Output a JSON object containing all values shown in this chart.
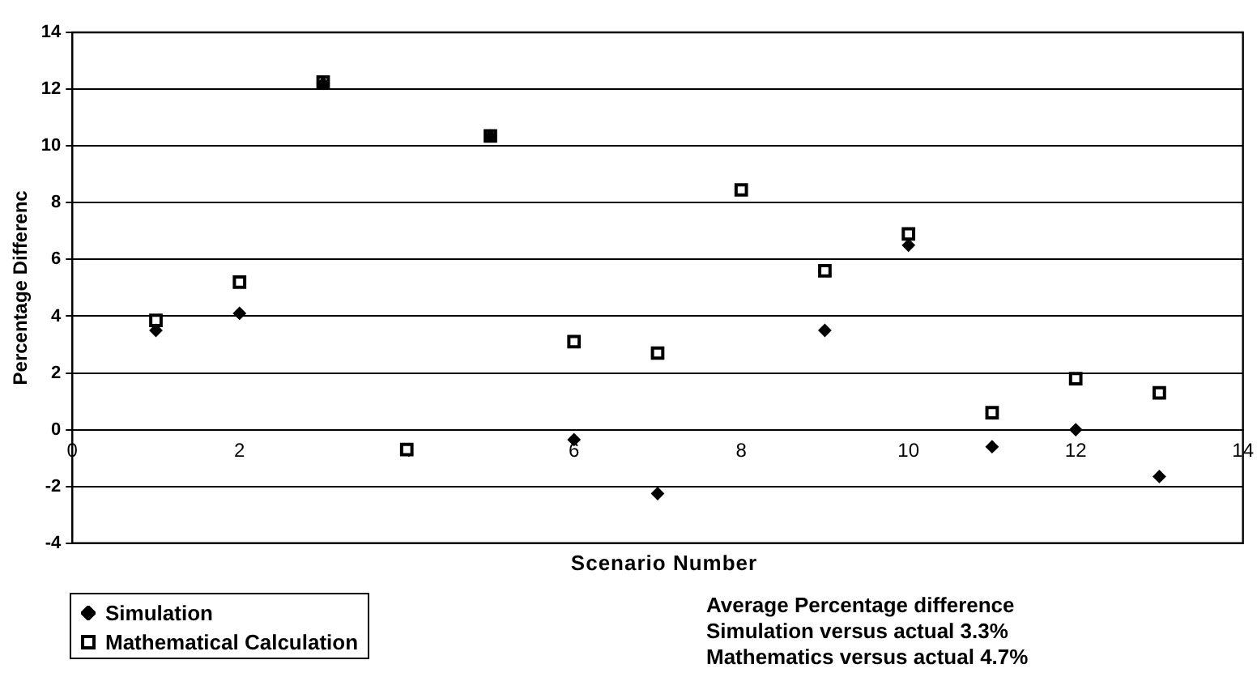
{
  "chart_data": {
    "type": "scatter",
    "xlabel": "Scenario Number",
    "ylabel": "Percentage Differenc",
    "x": [
      1,
      2,
      3,
      4,
      5,
      6,
      7,
      8,
      9,
      10,
      11,
      12,
      13
    ],
    "series": [
      {
        "name": "Simulation",
        "color": "#000000",
        "marker": "diamond",
        "values": [
          3.5,
          4.1,
          12.2,
          null,
          10.35,
          -0.35,
          -2.25,
          null,
          3.5,
          6.5,
          -0.6,
          0,
          -1.65
        ]
      },
      {
        "name": "Mathematical Calculation",
        "color": "#000000",
        "marker": "square",
        "values": [
          3.85,
          5.2,
          12.25,
          -0.7,
          10.35,
          3.1,
          2.7,
          8.45,
          5.6,
          6.9,
          0.6,
          1.8,
          1.3
        ]
      }
    ],
    "xlim": [
      0,
      14
    ],
    "xticks": [
      0,
      2,
      4,
      6,
      8,
      10,
      12,
      14
    ],
    "ylim": [
      -4,
      14
    ],
    "yticks": [
      -4,
      -2,
      0,
      2,
      4,
      6,
      8,
      10,
      12,
      14
    ],
    "grid": "y",
    "legend": "bottom left",
    "annotations": [
      "Average Percentage difference\nSimulation versus actual 3.3%\nMathematics versus actual 4.7%"
    ]
  }
}
